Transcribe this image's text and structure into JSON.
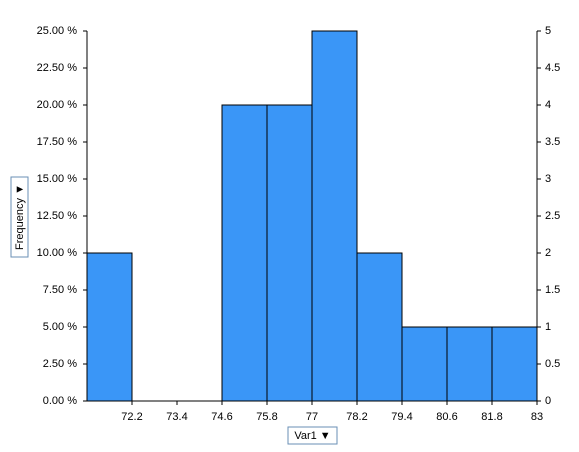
{
  "chart_data": {
    "type": "histogram",
    "bins": [
      71,
      72.2,
      73.4,
      74.6,
      75.8,
      77,
      78.2,
      79.4,
      80.6,
      81.8,
      83
    ],
    "counts": [
      2,
      0,
      0,
      4,
      4,
      5,
      2,
      1,
      1,
      1
    ],
    "axis": "y2",
    "color": "#3a96f7",
    "xlabel": "Var1 ▼",
    "ylabel": "Frequency ▼",
    "xlim": [
      71,
      83
    ],
    "xticks": [
      72.2,
      73.4,
      74.6,
      75.8,
      77,
      78.2,
      79.4,
      80.6,
      81.8,
      83
    ],
    "ylim": [
      0,
      25
    ],
    "yticks": [
      {
        "value": 0,
        "label": "0.00 %"
      },
      {
        "value": 2.5,
        "label": "2.50 %"
      },
      {
        "value": 5,
        "label": "5.00 %"
      },
      {
        "value": 7.5,
        "label": "7.50 %"
      },
      {
        "value": 10,
        "label": "10.00 %"
      },
      {
        "value": 12.5,
        "label": "12.50 %"
      },
      {
        "value": 15,
        "label": "15.00 %"
      },
      {
        "value": 17.5,
        "label": "17.50 %"
      },
      {
        "value": 20,
        "label": "20.00 %"
      },
      {
        "value": 22.5,
        "label": "22.50 %"
      },
      {
        "value": 25,
        "label": "25.00 %"
      }
    ],
    "y2lim": [
      0,
      5
    ],
    "y2ticks": [
      0,
      0.5,
      1,
      1.5,
      2,
      2.5,
      3,
      3.5,
      4,
      4.5,
      5
    ]
  }
}
